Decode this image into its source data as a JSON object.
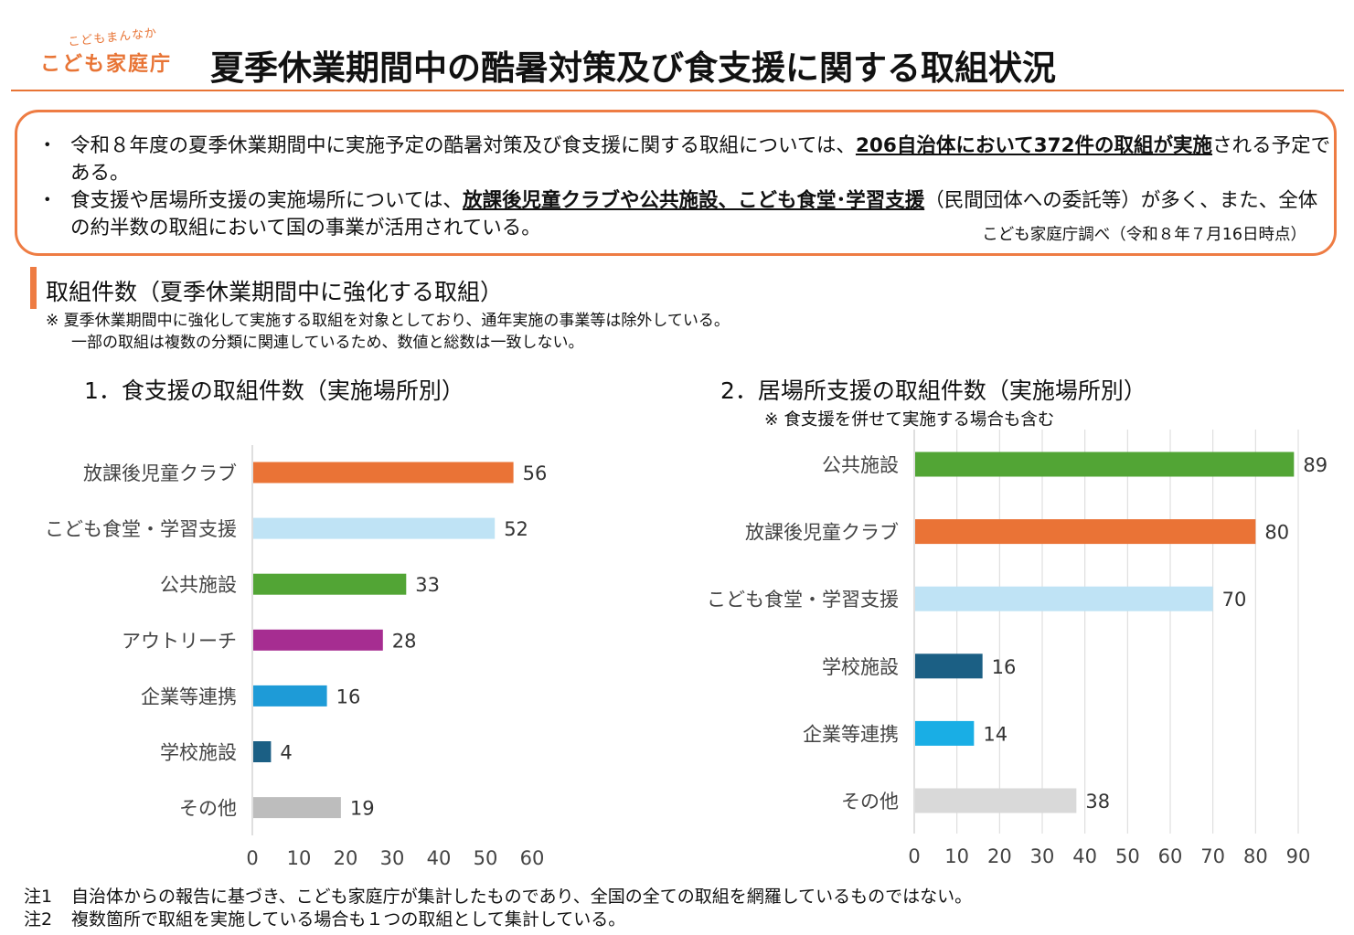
{
  "logo": {
    "sub": "こどもまんなか",
    "main": "こども家庭庁"
  },
  "title": "夏季休業期間中の酷暑対策及び食支援に関する取組状況",
  "summary": {
    "bullet": "・",
    "item1": {
      "before": "令和８年度の夏季休業期間中に実施予定の酷暑対策及び食支援に関する取組については、",
      "underline": "206自治体において372件の取組が実施",
      "after": "される予定である。"
    },
    "item2": {
      "before": "食支援や居場所支援の実施場所については、",
      "underline": "放課後児童クラブや公共施設、こども食堂･学習支援",
      "after": "（民間団体への委託等）が多く、また、全体の約半数の取組において国の事業が活用されている。"
    },
    "source": "こども家庭庁調べ（令和８年７月16日時点）"
  },
  "section": {
    "title": "取組件数（夏季休業期間中に強化する取組）",
    "note1": "※ 夏季休業期間中に強化して実施する取組を対象としており、通年実施の事業等は除外している。",
    "note2": "一部の取組は複数の分類に関連しているため、数値と総数は一致しない。"
  },
  "chart_data": [
    {
      "type": "bar",
      "orientation": "horizontal",
      "title": "1．食支援の取組件数（実施場所別）",
      "categories": [
        "放課後児童クラブ",
        "こども食堂・学習支援",
        "公共施設",
        "アウトリーチ",
        "企業等連携",
        "学校施設",
        "その他"
      ],
      "values": [
        56,
        52,
        33,
        28,
        16,
        4,
        19
      ],
      "colors": [
        "#ea7336",
        "#bfe3f5",
        "#52a535",
        "#a62d91",
        "#1e9bd7",
        "#1b5f84",
        "#bdbdbd"
      ],
      "xlim": [
        0,
        60
      ],
      "ticks": [
        0,
        10,
        20,
        30,
        40,
        50,
        60
      ],
      "grid": false
    },
    {
      "type": "bar",
      "orientation": "horizontal",
      "title": "2．居場所支援の取組件数（実施場所別）",
      "note": "※ 食支援を併せて実施する場合も含む",
      "categories": [
        "公共施設",
        "放課後児童クラブ",
        "こども食堂・学習支援",
        "学校施設",
        "企業等連携",
        "その他"
      ],
      "values": [
        89,
        80,
        70,
        16,
        14,
        38
      ],
      "colors": [
        "#52a535",
        "#ea7336",
        "#bfe3f5",
        "#1b5f84",
        "#19aee5",
        "#d9d9d9"
      ],
      "xlim": [
        0,
        90
      ],
      "ticks": [
        0,
        10,
        20,
        30,
        40,
        50,
        60,
        70,
        80,
        90
      ],
      "grid": true
    }
  ],
  "footnotes": [
    {
      "num": "注1",
      "text": "自治体からの報告に基づき、こども家庭庁が集計したものであり、全国の全ての取組を網羅しているものではない。"
    },
    {
      "num": "注2",
      "text": "複数箇所で取組を実施している場合も１つの取組として集計している。"
    }
  ]
}
